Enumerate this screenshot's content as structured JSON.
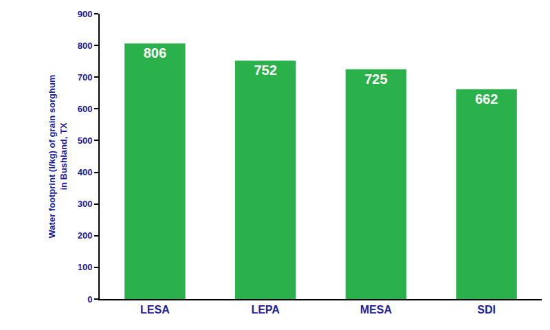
{
  "chart_data": {
    "type": "bar",
    "ylabel": [
      "Water footprint (l/kg) of grain sorghum",
      "in Bushland, TX"
    ],
    "categories": [
      "LESA",
      "LEPA",
      "MESA",
      "SDI"
    ],
    "values": [
      806,
      752,
      725,
      662
    ],
    "color": "#2bb14c",
    "ylim": [
      0,
      900
    ],
    "yticks": [
      0,
      100,
      200,
      300,
      400,
      500,
      600,
      700,
      800,
      900
    ],
    "grid": false,
    "data_labels": true
  }
}
